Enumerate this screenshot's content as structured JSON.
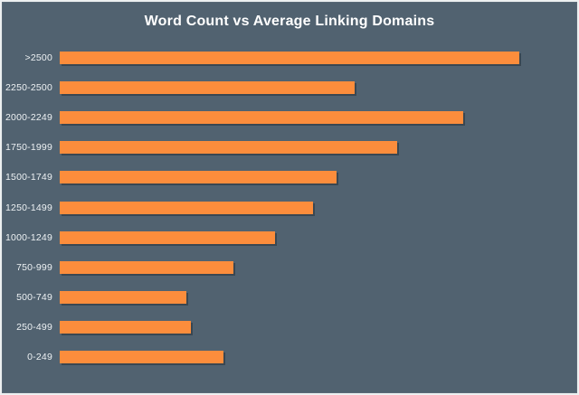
{
  "chart_data": {
    "type": "bar",
    "orientation": "horizontal",
    "title": "Word Count vs Average Linking Domains",
    "categories": [
      ">2500",
      "2250-2500",
      "2000-2249",
      "1750-1999",
      "1500-1749",
      "1250-1499",
      "1000-1249",
      "750-999",
      "500-749",
      "250-499",
      "0-249"
    ],
    "values": [
      9.8,
      6.3,
      8.6,
      7.2,
      5.9,
      5.4,
      4.6,
      3.7,
      2.7,
      2.8,
      3.5
    ],
    "xlabel": "",
    "ylabel": "",
    "xlim": [
      0,
      11
    ],
    "grid": false,
    "legend": false,
    "colors": {
      "background": "#516270",
      "bar": "#FC8D3C",
      "title_text": "#FFFFFF",
      "label_text": "#EEF2F4",
      "frame_border": "#EDF0F1"
    }
  }
}
